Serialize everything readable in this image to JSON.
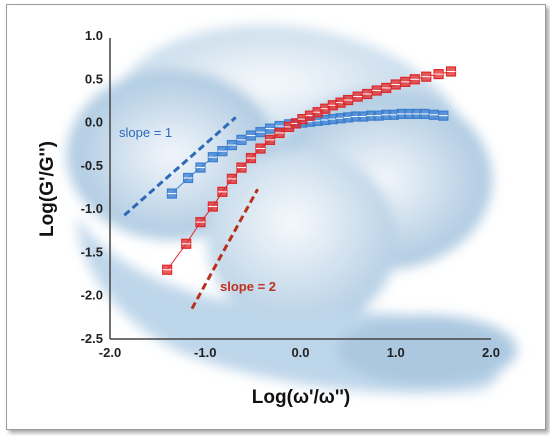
{
  "chart_data": {
    "type": "scatter",
    "title": "",
    "xlabel": "Log(ω'/ω'')",
    "ylabel": "Log(G'/G'')",
    "xlim": [
      -2.0,
      2.0
    ],
    "ylim": [
      -2.5,
      1.0
    ],
    "x_ticks": [
      "-2.0",
      "-1.0",
      "0.0",
      "1.0",
      "2.0"
    ],
    "y_ticks": [
      "1.0",
      "0.5",
      "0.0",
      "-0.5",
      "-1.0",
      "-1.5",
      "-2.0",
      "-2.5"
    ],
    "grid": false,
    "legend": "none",
    "series": [
      {
        "color": "#3b7fd0",
        "marker": "square",
        "x": [
          -1.35,
          -1.18,
          -1.05,
          -0.92,
          -0.82,
          -0.72,
          -0.62,
          -0.52,
          -0.42,
          -0.32,
          -0.22,
          -0.12,
          -0.05,
          0.02,
          0.1,
          0.18,
          0.26,
          0.34,
          0.42,
          0.5,
          0.58,
          0.66,
          0.74,
          0.82,
          0.9,
          0.98,
          1.06,
          1.14,
          1.22,
          1.3,
          1.4,
          1.5
        ],
        "y": [
          -0.82,
          -0.64,
          -0.52,
          -0.4,
          -0.33,
          -0.26,
          -0.2,
          -0.15,
          -0.11,
          -0.07,
          -0.04,
          -0.02,
          -0.01,
          0.0,
          0.01,
          0.02,
          0.03,
          0.04,
          0.05,
          0.06,
          0.07,
          0.07,
          0.08,
          0.08,
          0.09,
          0.09,
          0.1,
          0.1,
          0.1,
          0.1,
          0.09,
          0.08
        ]
      },
      {
        "color": "#e0282a",
        "marker": "square",
        "x": [
          -1.4,
          -1.2,
          -1.05,
          -0.92,
          -0.82,
          -0.72,
          -0.62,
          -0.52,
          -0.42,
          -0.32,
          -0.22,
          -0.12,
          -0.05,
          0.02,
          0.1,
          0.18,
          0.26,
          0.34,
          0.42,
          0.5,
          0.6,
          0.7,
          0.8,
          0.9,
          1.0,
          1.1,
          1.2,
          1.32,
          1.45,
          1.58
        ],
        "y": [
          -1.7,
          -1.4,
          -1.15,
          -0.97,
          -0.8,
          -0.65,
          -0.52,
          -0.41,
          -0.3,
          -0.2,
          -0.12,
          -0.05,
          -0.01,
          0.04,
          0.08,
          0.12,
          0.16,
          0.2,
          0.23,
          0.26,
          0.3,
          0.33,
          0.37,
          0.4,
          0.44,
          0.47,
          0.5,
          0.53,
          0.56,
          0.59
        ]
      }
    ],
    "reference_lines": [
      {
        "label": "slope = 1",
        "color": "#2d6ab5",
        "x": [
          -1.85,
          -0.68
        ],
        "y": [
          -1.07,
          0.06
        ]
      },
      {
        "label": "slope = 2",
        "color": "#b8301e",
        "x": [
          -1.14,
          -0.45
        ],
        "y": [
          -2.15,
          -0.77
        ]
      }
    ]
  }
}
